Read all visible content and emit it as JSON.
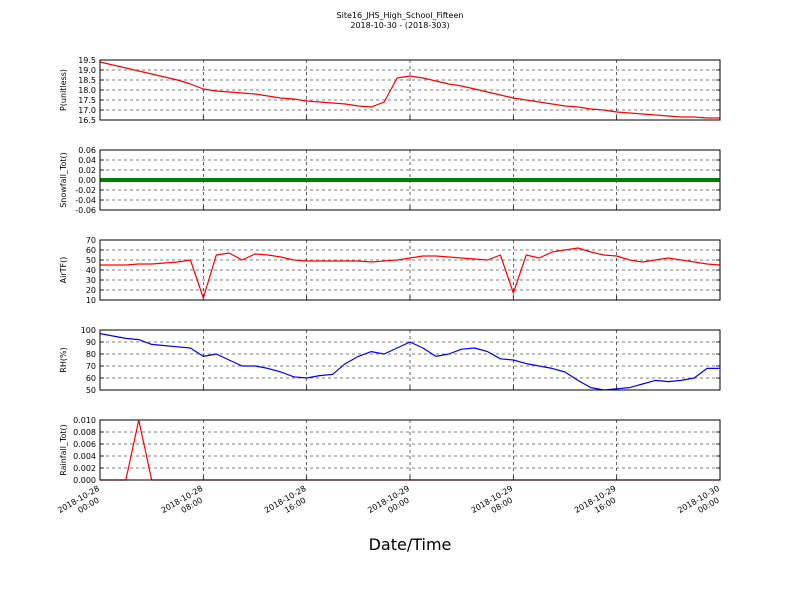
{
  "chart_data": [
    {
      "type": "line",
      "title": "Site16_JHS_High_School_Fifteen",
      "subtitle": "2018-10-30 - (2018-303)",
      "ylabel": "P(unitless)",
      "x": [
        "2018-10-28 00:00",
        "2018-10-28 01:00",
        "2018-10-28 02:00",
        "2018-10-28 03:00",
        "2018-10-28 04:00",
        "2018-10-28 05:00",
        "2018-10-28 06:00",
        "2018-10-28 07:00",
        "2018-10-28 08:00",
        "2018-10-28 09:00",
        "2018-10-28 10:00",
        "2018-10-28 11:00",
        "2018-10-28 12:00",
        "2018-10-28 13:00",
        "2018-10-28 14:00",
        "2018-10-28 15:00",
        "2018-10-28 16:00",
        "2018-10-28 17:00",
        "2018-10-28 18:00",
        "2018-10-28 19:00",
        "2018-10-28 20:00",
        "2018-10-28 21:00",
        "2018-10-28 22:00",
        "2018-10-28 23:00",
        "2018-10-29 00:00",
        "2018-10-29 01:00",
        "2018-10-29 02:00",
        "2018-10-29 03:00",
        "2018-10-29 04:00",
        "2018-10-29 05:00",
        "2018-10-29 06:00",
        "2018-10-29 07:00",
        "2018-10-29 08:00",
        "2018-10-29 09:00",
        "2018-10-29 10:00",
        "2018-10-29 11:00",
        "2018-10-29 12:00",
        "2018-10-29 13:00",
        "2018-10-29 14:00",
        "2018-10-29 15:00",
        "2018-10-29 16:00",
        "2018-10-29 17:00",
        "2018-10-29 18:00",
        "2018-10-29 19:00",
        "2018-10-29 20:00",
        "2018-10-29 21:00",
        "2018-10-29 22:00",
        "2018-10-29 23:00",
        "2018-10-30 00:00"
      ],
      "xticks": [
        "2018-10-28 00:00",
        "2018-10-28 08:00",
        "2018-10-28 16:00",
        "2018-10-29 00:00",
        "2018-10-29 08:00",
        "2018-10-29 16:00",
        "2018-10-30 00:00"
      ],
      "ylim": [
        16.5,
        19.5
      ],
      "yticks": [
        16.5,
        {
          "value": 17,
          "label": "17.0"
        },
        17.5,
        {
          "value": 18,
          "label": "18.0"
        },
        18.5,
        {
          "value": 19,
          "label": "19.0"
        },
        19.5
      ],
      "grid": true,
      "series": [
        {
          "color": "#ff0000",
          "values": [
            19.4,
            19.25,
            19.1,
            18.95,
            18.8,
            18.65,
            18.5,
            18.3,
            18.05,
            17.95,
            17.9,
            17.85,
            17.8,
            17.7,
            17.6,
            17.55,
            17.45,
            17.4,
            17.35,
            17.3,
            17.2,
            17.15,
            17.4,
            18.6,
            18.7,
            18.6,
            18.45,
            18.3,
            18.2,
            18.05,
            17.9,
            17.75,
            17.6,
            17.5,
            17.4,
            17.3,
            17.2,
            17.15,
            17.05,
            17.0,
            16.9,
            16.85,
            16.8,
            16.75,
            16.7,
            16.65,
            16.65,
            16.6,
            16.6
          ]
        }
      ]
    },
    {
      "type": "line",
      "ylabel": "Snowfall_Tot()",
      "x": [
        "2018-10-28 00:00",
        "2018-10-28 01:00",
        "2018-10-28 02:00",
        "2018-10-28 03:00",
        "2018-10-28 04:00",
        "2018-10-28 05:00",
        "2018-10-28 06:00",
        "2018-10-28 07:00",
        "2018-10-28 08:00",
        "2018-10-28 09:00",
        "2018-10-28 10:00",
        "2018-10-28 11:00",
        "2018-10-28 12:00",
        "2018-10-28 13:00",
        "2018-10-28 14:00",
        "2018-10-28 15:00",
        "2018-10-28 16:00",
        "2018-10-28 17:00",
        "2018-10-28 18:00",
        "2018-10-28 19:00",
        "2018-10-28 20:00",
        "2018-10-28 21:00",
        "2018-10-28 22:00",
        "2018-10-28 23:00",
        "2018-10-29 00:00",
        "2018-10-29 01:00",
        "2018-10-29 02:00",
        "2018-10-29 03:00",
        "2018-10-29 04:00",
        "2018-10-29 05:00",
        "2018-10-29 06:00",
        "2018-10-29 07:00",
        "2018-10-29 08:00",
        "2018-10-29 09:00",
        "2018-10-29 10:00",
        "2018-10-29 11:00",
        "2018-10-29 12:00",
        "2018-10-29 13:00",
        "2018-10-29 14:00",
        "2018-10-29 15:00",
        "2018-10-29 16:00",
        "2018-10-29 17:00",
        "2018-10-29 18:00",
        "2018-10-29 19:00",
        "2018-10-29 20:00",
        "2018-10-29 21:00",
        "2018-10-29 22:00",
        "2018-10-29 23:00",
        "2018-10-30 00:00"
      ],
      "xticks": [
        "2018-10-28 00:00",
        "2018-10-28 08:00",
        "2018-10-28 16:00",
        "2018-10-29 00:00",
        "2018-10-29 08:00",
        "2018-10-29 16:00",
        "2018-10-30 00:00"
      ],
      "ylim": [
        -0.06,
        0.06
      ],
      "yticks": [
        {
          "value": -0.06,
          "label": "-0.06"
        },
        {
          "value": -0.04,
          "label": "-0.04"
        },
        {
          "value": -0.02,
          "label": "-0.02"
        },
        {
          "value": 0,
          "label": "0.00"
        },
        {
          "value": 0.02,
          "label": "0.02"
        },
        {
          "value": 0.04,
          "label": "0.04"
        },
        {
          "value": 0.06,
          "label": "0.06"
        }
      ],
      "grid": true,
      "series": [
        {
          "color": "#008000",
          "values": [
            0,
            0,
            0,
            0,
            0,
            0,
            0,
            0,
            0,
            0,
            0,
            0,
            0,
            0,
            0,
            0,
            0,
            0,
            0,
            0,
            0,
            0,
            0,
            0,
            0,
            0,
            0,
            0,
            0,
            0,
            0,
            0,
            0,
            0,
            0,
            0,
            0,
            0,
            0,
            0,
            0,
            0,
            0,
            0,
            0,
            0,
            0,
            0,
            0
          ]
        }
      ]
    },
    {
      "type": "line",
      "ylabel": "AirTF()",
      "x": [
        "2018-10-28 00:00",
        "2018-10-28 01:00",
        "2018-10-28 02:00",
        "2018-10-28 03:00",
        "2018-10-28 04:00",
        "2018-10-28 05:00",
        "2018-10-28 06:00",
        "2018-10-28 07:00",
        "2018-10-28 08:00",
        "2018-10-28 09:00",
        "2018-10-28 10:00",
        "2018-10-28 11:00",
        "2018-10-28 12:00",
        "2018-10-28 13:00",
        "2018-10-28 14:00",
        "2018-10-28 15:00",
        "2018-10-28 16:00",
        "2018-10-28 17:00",
        "2018-10-28 18:00",
        "2018-10-28 19:00",
        "2018-10-28 20:00",
        "2018-10-28 21:00",
        "2018-10-28 22:00",
        "2018-10-28 23:00",
        "2018-10-29 00:00",
        "2018-10-29 01:00",
        "2018-10-29 02:00",
        "2018-10-29 03:00",
        "2018-10-29 04:00",
        "2018-10-29 05:00",
        "2018-10-29 06:00",
        "2018-10-29 07:00",
        "2018-10-29 08:00",
        "2018-10-29 09:00",
        "2018-10-29 10:00",
        "2018-10-29 11:00",
        "2018-10-29 12:00",
        "2018-10-29 13:00",
        "2018-10-29 14:00",
        "2018-10-29 15:00",
        "2018-10-29 16:00",
        "2018-10-29 17:00",
        "2018-10-29 18:00",
        "2018-10-29 19:00",
        "2018-10-29 20:00",
        "2018-10-29 21:00",
        "2018-10-29 22:00",
        "2018-10-29 23:00",
        "2018-10-30 00:00"
      ],
      "xticks": [
        "2018-10-28 00:00",
        "2018-10-28 08:00",
        "2018-10-28 16:00",
        "2018-10-29 00:00",
        "2018-10-29 08:00",
        "2018-10-29 16:00",
        "2018-10-30 00:00"
      ],
      "ylim": [
        10,
        70
      ],
      "yticks": [
        10,
        20,
        30,
        40,
        50,
        60,
        70
      ],
      "grid": true,
      "series": [
        {
          "color": "#ff0000",
          "values": [
            45,
            45,
            45,
            46,
            46,
            47,
            48,
            50,
            12,
            55,
            57,
            50,
            56,
            55,
            53,
            50,
            49,
            49,
            49,
            49,
            49,
            48,
            49,
            50,
            52,
            54,
            54,
            53,
            52,
            51,
            50,
            55,
            17,
            55,
            52,
            58,
            60,
            62,
            58,
            55,
            54,
            50,
            48,
            50,
            52,
            50,
            48,
            46,
            45
          ]
        }
      ]
    },
    {
      "type": "line",
      "ylabel": "RH(%)",
      "x": [
        "2018-10-28 00:00",
        "2018-10-28 01:00",
        "2018-10-28 02:00",
        "2018-10-28 03:00",
        "2018-10-28 04:00",
        "2018-10-28 05:00",
        "2018-10-28 06:00",
        "2018-10-28 07:00",
        "2018-10-28 08:00",
        "2018-10-28 09:00",
        "2018-10-28 10:00",
        "2018-10-28 11:00",
        "2018-10-28 12:00",
        "2018-10-28 13:00",
        "2018-10-28 14:00",
        "2018-10-28 15:00",
        "2018-10-28 16:00",
        "2018-10-28 17:00",
        "2018-10-28 18:00",
        "2018-10-28 19:00",
        "2018-10-28 20:00",
        "2018-10-28 21:00",
        "2018-10-28 22:00",
        "2018-10-28 23:00",
        "2018-10-29 00:00",
        "2018-10-29 01:00",
        "2018-10-29 02:00",
        "2018-10-29 03:00",
        "2018-10-29 04:00",
        "2018-10-29 05:00",
        "2018-10-29 06:00",
        "2018-10-29 07:00",
        "2018-10-29 08:00",
        "2018-10-29 09:00",
        "2018-10-29 10:00",
        "2018-10-29 11:00",
        "2018-10-29 12:00",
        "2018-10-29 13:00",
        "2018-10-29 14:00",
        "2018-10-29 15:00",
        "2018-10-29 16:00",
        "2018-10-29 17:00",
        "2018-10-29 18:00",
        "2018-10-29 19:00",
        "2018-10-29 20:00",
        "2018-10-29 21:00",
        "2018-10-29 22:00",
        "2018-10-29 23:00",
        "2018-10-30 00:00"
      ],
      "xticks": [
        "2018-10-28 00:00",
        "2018-10-28 08:00",
        "2018-10-28 16:00",
        "2018-10-29 00:00",
        "2018-10-29 08:00",
        "2018-10-29 16:00",
        "2018-10-30 00:00"
      ],
      "ylim": [
        50,
        100
      ],
      "yticks": [
        50,
        60,
        70,
        80,
        90,
        100
      ],
      "grid": true,
      "series": [
        {
          "color": "#0000ff",
          "values": [
            97,
            95,
            93,
            92,
            88,
            87,
            86,
            85,
            78,
            80,
            75,
            70,
            70,
            68,
            65,
            61,
            60,
            62,
            63,
            72,
            78,
            82,
            80,
            85,
            90,
            85,
            78,
            80,
            84,
            85,
            82,
            76,
            75,
            72,
            70,
            68,
            65,
            58,
            52,
            50,
            51,
            52,
            55,
            58,
            57,
            58,
            60,
            68,
            68
          ]
        }
      ]
    },
    {
      "type": "line",
      "ylabel": "Rainfall_Tot()",
      "xlabel": "Date/Time",
      "x": [
        "2018-10-28 00:00",
        "2018-10-28 01:00",
        "2018-10-28 02:00",
        "2018-10-28 03:00",
        "2018-10-28 04:00",
        "2018-10-28 05:00",
        "2018-10-28 06:00",
        "2018-10-28 07:00",
        "2018-10-28 08:00",
        "2018-10-28 09:00",
        "2018-10-28 10:00",
        "2018-10-28 11:00",
        "2018-10-28 12:00",
        "2018-10-28 13:00",
        "2018-10-28 14:00",
        "2018-10-28 15:00",
        "2018-10-28 16:00",
        "2018-10-28 17:00",
        "2018-10-28 18:00",
        "2018-10-28 19:00",
        "2018-10-28 20:00",
        "2018-10-28 21:00",
        "2018-10-28 22:00",
        "2018-10-28 23:00",
        "2018-10-29 00:00",
        "2018-10-29 01:00",
        "2018-10-29 02:00",
        "2018-10-29 03:00",
        "2018-10-29 04:00",
        "2018-10-29 05:00",
        "2018-10-29 06:00",
        "2018-10-29 07:00",
        "2018-10-29 08:00",
        "2018-10-29 09:00",
        "2018-10-29 10:00",
        "2018-10-29 11:00",
        "2018-10-29 12:00",
        "2018-10-29 13:00",
        "2018-10-29 14:00",
        "2018-10-29 15:00",
        "2018-10-29 16:00",
        "2018-10-29 17:00",
        "2018-10-29 18:00",
        "2018-10-29 19:00",
        "2018-10-29 20:00",
        "2018-10-29 21:00",
        "2018-10-29 22:00",
        "2018-10-29 23:00",
        "2018-10-30 00:00"
      ],
      "xticks": [
        "2018-10-28 00:00",
        "2018-10-28 08:00",
        "2018-10-28 16:00",
        "2018-10-29 00:00",
        "2018-10-29 08:00",
        "2018-10-29 16:00",
        "2018-10-30 00:00"
      ],
      "xticklabels": true,
      "ylim": [
        0,
        0.01
      ],
      "yticks": [
        {
          "value": 0,
          "label": "0.000"
        },
        {
          "value": 0.002,
          "label": "0.002"
        },
        {
          "value": 0.004,
          "label": "0.004"
        },
        {
          "value": 0.006,
          "label": "0.006"
        },
        {
          "value": 0.008,
          "label": "0.008"
        },
        {
          "value": 0.01,
          "label": "0.010"
        }
      ],
      "grid": true,
      "series": [
        {
          "color": "#ff0000",
          "values": [
            0,
            0,
            0,
            0.01,
            0,
            0,
            0,
            0,
            0,
            0,
            0,
            0,
            0,
            0,
            0,
            0,
            0,
            0,
            0,
            0,
            0,
            0,
            0,
            0,
            0,
            0,
            0,
            0,
            0,
            0,
            0,
            0,
            0,
            0,
            0,
            0,
            0,
            0,
            0,
            0,
            0,
            0,
            0,
            0,
            0,
            0,
            0,
            0,
            0
          ]
        }
      ]
    }
  ]
}
